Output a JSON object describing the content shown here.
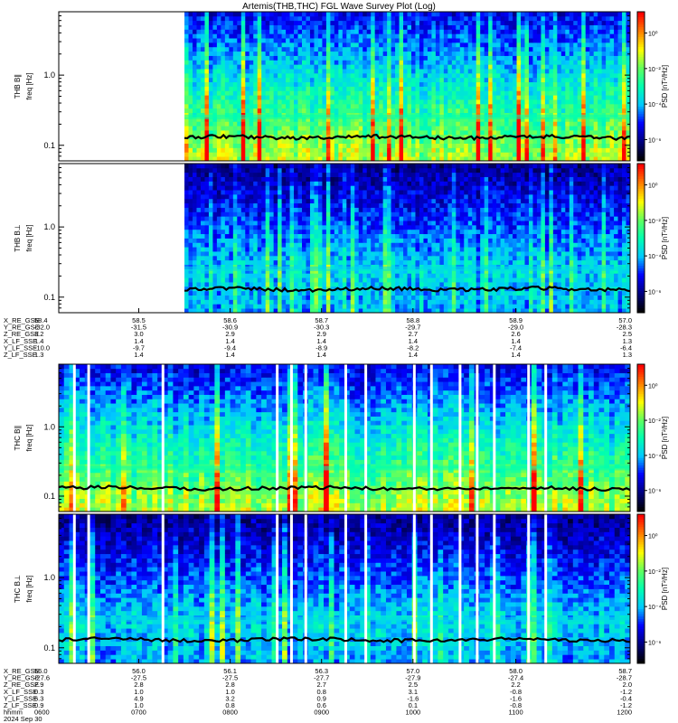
{
  "title": "Artemis(THB,THC) FGL Wave Survey Plot (Log)",
  "colorbar": {
    "label": "PSD [nT²/Hz]",
    "ticks": [
      "10⁰",
      "10⁻²",
      "10⁻⁴",
      "10⁻⁶"
    ],
    "tick_values": [
      0,
      -2,
      -4,
      -6
    ],
    "range_log10": [
      -7.2,
      1.2
    ],
    "colors": [
      "#000000",
      "#000080",
      "#0000ff",
      "#00c8ff",
      "#00ffb0",
      "#60ff60",
      "#ffff00",
      "#ff8000",
      "#ff0000"
    ]
  },
  "chart_data": [
    {
      "type": "heatmap",
      "title": "THB B‖",
      "ylabel": "THB B∥\nfreq [Hz]",
      "yscale": "log",
      "ylim": [
        0.06,
        8.0
      ],
      "ytick_labels": [
        "0.1",
        "1.0"
      ],
      "ytick_values": [
        0.1,
        1.0
      ],
      "data_start_fraction": 0.22,
      "gyro_line_hz": 0.13,
      "activity": "high"
    },
    {
      "type": "heatmap",
      "title": "THB B⊥",
      "ylabel": "THB B⊥\nfreq [Hz]",
      "yscale": "log",
      "ylim": [
        0.06,
        8.0
      ],
      "ytick_labels": [
        "0.1",
        "1.0"
      ],
      "ytick_values": [
        0.1,
        1.0
      ],
      "data_start_fraction": 0.22,
      "gyro_line_hz": 0.13,
      "activity": "low"
    },
    {
      "type": "heatmap",
      "title": "THC B‖",
      "ylabel": "THC B∥\nfreq [Hz]",
      "yscale": "log",
      "ylim": [
        0.06,
        8.0
      ],
      "ytick_labels": [
        "0.1",
        "1.0"
      ],
      "ytick_values": [
        0.1,
        1.0
      ],
      "data_start_fraction": 0.0,
      "gyro_line_hz": 0.13,
      "gaps_fraction": [
        0.025,
        0.05,
        0.18,
        0.38,
        0.405,
        0.43,
        0.5,
        0.535,
        0.62,
        0.65,
        0.7,
        0.73,
        0.76,
        0.82,
        0.85
      ],
      "activity": "high"
    },
    {
      "type": "heatmap",
      "title": "THC B⊥",
      "ylabel": "THC B⊥\nfreq [Hz]",
      "yscale": "log",
      "ylim": [
        0.06,
        8.0
      ],
      "ytick_labels": [
        "0.1",
        "1.0"
      ],
      "ytick_values": [
        0.1,
        1.0
      ],
      "data_start_fraction": 0.0,
      "gyro_line_hz": 0.13,
      "gaps_fraction": [
        0.025,
        0.05,
        0.18,
        0.38,
        0.405,
        0.43,
        0.5,
        0.535,
        0.62,
        0.65,
        0.7,
        0.73,
        0.76,
        0.82,
        0.85
      ],
      "activity": "low"
    }
  ],
  "ephem_thb": {
    "labels": [
      "X_RE_GSE",
      "Y_RE_GSE",
      "Z_RE_GSE",
      "X_LF_SSE",
      "Y_LF_SSE",
      "Z_LF_SSE"
    ],
    "columns": [
      [
        "58.4",
        "-32.0",
        "3.2",
        "1.4",
        "-10.0",
        "1.3"
      ],
      [
        "58.5",
        "-31.5",
        "3.0",
        "1.4",
        "-9.7",
        "1.4"
      ],
      [
        "58.6",
        "-30.9",
        "2.9",
        "1.4",
        "-9.4",
        "1.4"
      ],
      [
        "58.7",
        "-30.3",
        "2.9",
        "1.4",
        "-8.9",
        "1.4"
      ],
      [
        "58.8",
        "-29.7",
        "2.7",
        "1.4",
        "-8.2",
        "1.4"
      ],
      [
        "58.9",
        "-29.0",
        "2.6",
        "1.4",
        "-7.4",
        "1.4"
      ],
      [
        "57.0",
        "-28.3",
        "2.5",
        "1.3",
        "-6.4",
        "1.3"
      ]
    ]
  },
  "ephem_thc": {
    "labels": [
      "X_RE_GSE",
      "Y_RE_GSE",
      "Z_RE_GSE",
      "X_LF_SSE",
      "Y_LF_SSE",
      "Z_LF_SSE",
      "hhmm"
    ],
    "columns": [
      [
        "56.0",
        "-27.6",
        "2.9",
        "0.3",
        "6.3",
        "0.9",
        "0600"
      ],
      [
        "56.0",
        "-27.5",
        "2.8",
        "1.0",
        "4.9",
        "1.0",
        "0700"
      ],
      [
        "56.1",
        "-27.5",
        "2.8",
        "1.0",
        "3.2",
        "0.8",
        "0800"
      ],
      [
        "56.3",
        "-27.7",
        "2.7",
        "0.8",
        "0.9",
        "0.6",
        "0900"
      ],
      [
        "57.0",
        "-27.9",
        "2.5",
        "3.1",
        "-1.6",
        "0.1",
        "1000"
      ],
      [
        "58.0",
        "-27.4",
        "2.2",
        "-0.8",
        "-1.6",
        "-0.8",
        "1100"
      ],
      [
        "58.7",
        "-28.7",
        "2.0",
        "-1.2",
        "-0.4",
        "-1.2",
        "1200"
      ]
    ],
    "date": "2024 Sep 30"
  }
}
